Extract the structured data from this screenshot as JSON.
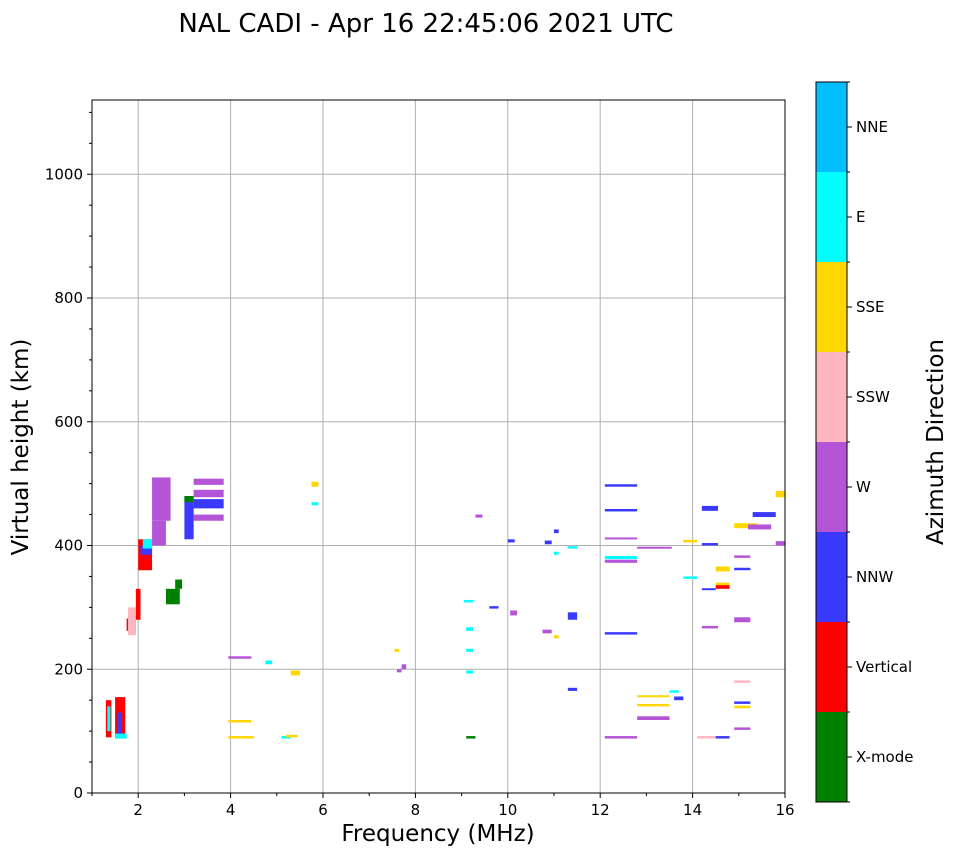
{
  "chart_data": {
    "type": "scatter",
    "title": "NAL CADI - Apr 16 22:45:06 2021 UTC",
    "xlabel": "Frequency (MHz)",
    "ylabel": "Virtual height (km)",
    "xlim": [
      1,
      16
    ],
    "ylim": [
      0,
      1120
    ],
    "xticks": [
      2,
      4,
      6,
      8,
      10,
      12,
      14,
      16
    ],
    "yticks": [
      0,
      200,
      400,
      600,
      800,
      1000
    ],
    "grid": true,
    "colorbar": {
      "label": "Azimuth Direction",
      "categories": [
        "X-mode",
        "Vertical",
        "NNW",
        "W",
        "SSW",
        "SSE",
        "E",
        "NNE"
      ],
      "colors": [
        "#008000",
        "#ff0000",
        "#3a3aff",
        "#b455d8",
        "#ffb6c1",
        "#ffd700",
        "#00ffff",
        "#00bfff"
      ]
    },
    "echoes": [
      {
        "f": 1.3,
        "f2": 1.42,
        "h": 90,
        "h2": 150,
        "az": "Vertical"
      },
      {
        "f": 1.33,
        "f2": 1.4,
        "h": 100,
        "h2": 140,
        "az": "E"
      },
      {
        "f": 1.5,
        "f2": 1.72,
        "h": 88,
        "h2": 155,
        "az": "Vertical"
      },
      {
        "f": 1.55,
        "f2": 1.65,
        "h": 92,
        "h2": 130,
        "az": "NNW"
      },
      {
        "f": 1.5,
        "f2": 1.75,
        "h": 88,
        "h2": 96,
        "az": "E"
      },
      {
        "f": 1.75,
        "f2": 1.95,
        "h": 262,
        "h2": 282,
        "az": "Vertical"
      },
      {
        "f": 1.78,
        "f2": 1.95,
        "h": 255,
        "h2": 300,
        "az": "SSW"
      },
      {
        "f": 1.95,
        "f2": 2.05,
        "h": 280,
        "h2": 330,
        "az": "Vertical"
      },
      {
        "f": 2.0,
        "f2": 2.3,
        "h": 360,
        "h2": 410,
        "az": "Vertical"
      },
      {
        "f": 2.05,
        "f2": 2.3,
        "h": 385,
        "h2": 400,
        "az": "NNW"
      },
      {
        "f": 2.1,
        "f2": 2.3,
        "h": 395,
        "h2": 410,
        "az": "E"
      },
      {
        "f": 2.3,
        "f2": 2.6,
        "h": 400,
        "h2": 440,
        "az": "W"
      },
      {
        "f": 2.3,
        "f2": 2.7,
        "h": 440,
        "h2": 510,
        "az": "W"
      },
      {
        "f": 2.6,
        "f2": 2.9,
        "h": 305,
        "h2": 330,
        "az": "X-mode"
      },
      {
        "f": 2.8,
        "f2": 2.95,
        "h": 330,
        "h2": 345,
        "az": "X-mode"
      },
      {
        "f": 3.0,
        "f2": 3.2,
        "h": 410,
        "h2": 480,
        "az": "NNW"
      },
      {
        "f": 3.0,
        "f2": 3.2,
        "h": 470,
        "h2": 480,
        "az": "X-mode"
      },
      {
        "f": 3.2,
        "f2": 3.85,
        "h": 440,
        "h2": 450,
        "az": "W"
      },
      {
        "f": 3.2,
        "f2": 3.85,
        "h": 460,
        "h2": 475,
        "az": "NNW"
      },
      {
        "f": 3.2,
        "f2": 3.85,
        "h": 478,
        "h2": 490,
        "az": "W"
      },
      {
        "f": 3.2,
        "f2": 3.85,
        "h": 498,
        "h2": 508,
        "az": "W"
      },
      {
        "f": 3.95,
        "f2": 4.45,
        "h": 217,
        "h2": 221,
        "az": "W"
      },
      {
        "f": 3.95,
        "f2": 4.45,
        "h": 114,
        "h2": 118,
        "az": "SSE"
      },
      {
        "f": 3.95,
        "f2": 4.5,
        "h": 88,
        "h2": 92,
        "az": "SSE"
      },
      {
        "f": 4.75,
        "f2": 4.9,
        "h": 208,
        "h2": 214,
        "az": "E"
      },
      {
        "f": 5.3,
        "f2": 5.5,
        "h": 190,
        "h2": 198,
        "az": "SSE"
      },
      {
        "f": 5.1,
        "f2": 5.3,
        "h": 88,
        "h2": 92,
        "az": "E"
      },
      {
        "f": 5.2,
        "f2": 5.45,
        "h": 90,
        "h2": 94,
        "az": "SSE"
      },
      {
        "f": 5.75,
        "f2": 5.9,
        "h": 495,
        "h2": 503,
        "az": "SSE"
      },
      {
        "f": 5.75,
        "f2": 5.9,
        "h": 465,
        "h2": 470,
        "az": "E"
      },
      {
        "f": 7.6,
        "f2": 7.7,
        "h": 195,
        "h2": 200,
        "az": "W"
      },
      {
        "f": 7.7,
        "f2": 7.8,
        "h": 200,
        "h2": 208,
        "az": "W"
      },
      {
        "f": 7.55,
        "f2": 7.65,
        "h": 228,
        "h2": 233,
        "az": "SSE"
      },
      {
        "f": 9.1,
        "f2": 9.25,
        "h": 262,
        "h2": 268,
        "az": "E"
      },
      {
        "f": 9.1,
        "f2": 9.25,
        "h": 228,
        "h2": 233,
        "az": "E"
      },
      {
        "f": 9.1,
        "f2": 9.25,
        "h": 193,
        "h2": 198,
        "az": "E"
      },
      {
        "f": 9.1,
        "f2": 9.3,
        "h": 88,
        "h2": 92,
        "az": "X-mode"
      },
      {
        "f": 9.05,
        "f2": 9.25,
        "h": 308,
        "h2": 312,
        "az": "E"
      },
      {
        "f": 9.3,
        "f2": 9.45,
        "h": 445,
        "h2": 450,
        "az": "W"
      },
      {
        "f": 9.6,
        "f2": 9.8,
        "h": 298,
        "h2": 302,
        "az": "NNW"
      },
      {
        "f": 10.0,
        "f2": 10.15,
        "h": 405,
        "h2": 410,
        "az": "NNW"
      },
      {
        "f": 10.05,
        "f2": 10.2,
        "h": 287,
        "h2": 295,
        "az": "W"
      },
      {
        "f": 10.75,
        "f2": 10.95,
        "h": 258,
        "h2": 264,
        "az": "W"
      },
      {
        "f": 10.8,
        "f2": 10.95,
        "h": 402,
        "h2": 408,
        "az": "NNW"
      },
      {
        "f": 11.0,
        "f2": 11.1,
        "h": 420,
        "h2": 426,
        "az": "NNW"
      },
      {
        "f": 11.0,
        "f2": 11.1,
        "h": 385,
        "h2": 390,
        "az": "E"
      },
      {
        "f": 11.0,
        "f2": 11.1,
        "h": 250,
        "h2": 255,
        "az": "SSE"
      },
      {
        "f": 11.3,
        "f2": 11.5,
        "h": 280,
        "h2": 292,
        "az": "NNW"
      },
      {
        "f": 11.3,
        "f2": 11.5,
        "h": 395,
        "h2": 399,
        "az": "E"
      },
      {
        "f": 11.3,
        "f2": 11.5,
        "h": 165,
        "h2": 170,
        "az": "NNW"
      },
      {
        "f": 12.1,
        "f2": 12.8,
        "h": 495,
        "h2": 499,
        "az": "NNW"
      },
      {
        "f": 12.1,
        "f2": 12.8,
        "h": 455,
        "h2": 459,
        "az": "NNW"
      },
      {
        "f": 12.1,
        "f2": 12.8,
        "h": 410,
        "h2": 413,
        "az": "W"
      },
      {
        "f": 12.1,
        "f2": 12.8,
        "h": 378,
        "h2": 383,
        "az": "E"
      },
      {
        "f": 12.1,
        "f2": 12.8,
        "h": 372,
        "h2": 377,
        "az": "W"
      },
      {
        "f": 12.1,
        "f2": 12.8,
        "h": 256,
        "h2": 260,
        "az": "NNW"
      },
      {
        "f": 12.1,
        "f2": 12.8,
        "h": 88,
        "h2": 92,
        "az": "W"
      },
      {
        "f": 12.8,
        "f2": 13.55,
        "h": 395,
        "h2": 398,
        "az": "W"
      },
      {
        "f": 12.8,
        "f2": 13.5,
        "h": 155,
        "h2": 158,
        "az": "SSE"
      },
      {
        "f": 12.8,
        "f2": 13.5,
        "h": 140,
        "h2": 144,
        "az": "SSE"
      },
      {
        "f": 12.8,
        "f2": 13.5,
        "h": 118,
        "h2": 124,
        "az": "W"
      },
      {
        "f": 13.6,
        "f2": 13.8,
        "h": 150,
        "h2": 156,
        "az": "NNW"
      },
      {
        "f": 13.5,
        "f2": 13.7,
        "h": 162,
        "h2": 166,
        "az": "E"
      },
      {
        "f": 13.8,
        "f2": 14.1,
        "h": 405,
        "h2": 409,
        "az": "SSE"
      },
      {
        "f": 13.8,
        "f2": 14.1,
        "h": 346,
        "h2": 350,
        "az": "E"
      },
      {
        "f": 14.2,
        "f2": 14.55,
        "h": 456,
        "h2": 464,
        "az": "NNW"
      },
      {
        "f": 14.2,
        "f2": 14.55,
        "h": 400,
        "h2": 404,
        "az": "NNW"
      },
      {
        "f": 14.2,
        "f2": 14.5,
        "h": 328,
        "h2": 331,
        "az": "NNW"
      },
      {
        "f": 14.2,
        "f2": 14.55,
        "h": 266,
        "h2": 270,
        "az": "W"
      },
      {
        "f": 14.1,
        "f2": 14.5,
        "h": 88,
        "h2": 92,
        "az": "SSW"
      },
      {
        "f": 14.5,
        "f2": 14.8,
        "h": 88,
        "h2": 92,
        "az": "NNW"
      },
      {
        "f": 14.5,
        "f2": 14.8,
        "h": 358,
        "h2": 366,
        "az": "SSE"
      },
      {
        "f": 14.5,
        "f2": 14.8,
        "h": 330,
        "h2": 336,
        "az": "Vertical"
      },
      {
        "f": 14.5,
        "f2": 14.8,
        "h": 336,
        "h2": 340,
        "az": "SSE"
      },
      {
        "f": 14.9,
        "f2": 15.4,
        "h": 428,
        "h2": 436,
        "az": "SSE"
      },
      {
        "f": 15.2,
        "f2": 15.7,
        "h": 426,
        "h2": 434,
        "az": "W"
      },
      {
        "f": 15.3,
        "f2": 15.8,
        "h": 446,
        "h2": 454,
        "az": "NNW"
      },
      {
        "f": 15.8,
        "f2": 16.0,
        "h": 478,
        "h2": 488,
        "az": "SSE"
      },
      {
        "f": 15.8,
        "f2": 16.0,
        "h": 400,
        "h2": 407,
        "az": "W"
      },
      {
        "f": 14.9,
        "f2": 15.25,
        "h": 276,
        "h2": 284,
        "az": "W"
      },
      {
        "f": 14.9,
        "f2": 15.25,
        "h": 360,
        "h2": 364,
        "az": "NNW"
      },
      {
        "f": 14.9,
        "f2": 15.25,
        "h": 380,
        "h2": 384,
        "az": "W"
      },
      {
        "f": 14.9,
        "f2": 15.25,
        "h": 178,
        "h2": 182,
        "az": "SSW"
      },
      {
        "f": 14.9,
        "f2": 15.25,
        "h": 144,
        "h2": 148,
        "az": "NNW"
      },
      {
        "f": 14.9,
        "f2": 15.25,
        "h": 137,
        "h2": 141,
        "az": "SSE"
      },
      {
        "f": 14.9,
        "f2": 15.25,
        "h": 102,
        "h2": 106,
        "az": "W"
      }
    ]
  }
}
